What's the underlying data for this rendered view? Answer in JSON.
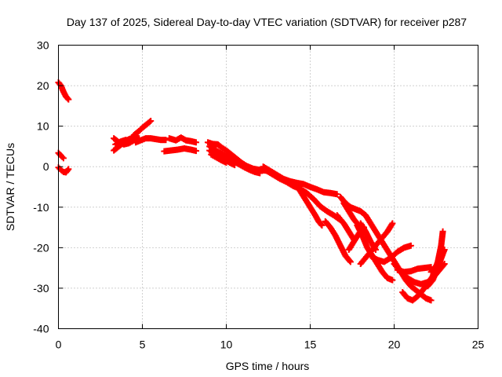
{
  "chart_data": {
    "type": "scatter",
    "title": "Day 137 of 2025, Sidereal Day-to-day VTEC variation (SDTVAR) for receiver p287",
    "xlabel": "GPS time / hours",
    "ylabel": "SDTVAR / TECUs",
    "xlim": [
      0,
      25
    ],
    "ylim": [
      -40,
      30
    ],
    "xticks": [
      0,
      5,
      10,
      15,
      20,
      25
    ],
    "yticks": [
      30,
      20,
      10,
      0,
      -10,
      -20,
      -30,
      -40
    ],
    "grid": true,
    "marker": "+",
    "color": "#ff0000",
    "series": [
      {
        "name": "SDTVAR",
        "segments": [
          [
            [
              0.0,
              20.8
            ],
            [
              0.15,
              20.0
            ],
            [
              0.3,
              18.5
            ],
            [
              0.45,
              17.3
            ],
            [
              0.6,
              16.6
            ]
          ],
          [
            [
              0.0,
              3.4
            ],
            [
              0.15,
              2.7
            ],
            [
              0.3,
              2.1
            ]
          ],
          [
            [
              0.0,
              -0.2
            ],
            [
              0.15,
              -0.8
            ],
            [
              0.3,
              -1.3
            ],
            [
              0.45,
              -1.4
            ],
            [
              0.6,
              -0.6
            ]
          ],
          [
            [
              3.3,
              4.0
            ],
            [
              3.6,
              5.0
            ],
            [
              3.9,
              6.0
            ],
            [
              4.2,
              6.8
            ],
            [
              4.5,
              7.2
            ],
            [
              4.8,
              7.0
            ]
          ],
          [
            [
              3.3,
              7.0
            ],
            [
              3.6,
              6.0
            ],
            [
              3.9,
              5.5
            ],
            [
              4.2,
              5.8
            ],
            [
              4.5,
              6.5
            ],
            [
              4.8,
              6.8
            ]
          ],
          [
            [
              3.4,
              5.5
            ],
            [
              3.7,
              6.2
            ],
            [
              4.0,
              6.6
            ],
            [
              4.3,
              6.4
            ]
          ],
          [
            [
              4.5,
              7.8
            ],
            [
              4.8,
              8.8
            ],
            [
              5.0,
              9.6
            ],
            [
              5.3,
              10.6
            ],
            [
              5.5,
              11.3
            ]
          ],
          [
            [
              4.6,
              6.0
            ],
            [
              4.9,
              6.5
            ],
            [
              5.2,
              7.0
            ],
            [
              5.5,
              7.0
            ],
            [
              5.8,
              6.8
            ],
            [
              6.1,
              6.6
            ],
            [
              6.4,
              6.6
            ]
          ],
          [
            [
              6.6,
              7.0
            ],
            [
              7.0,
              6.5
            ],
            [
              7.3,
              7.2
            ],
            [
              7.6,
              6.5
            ],
            [
              7.9,
              6.3
            ],
            [
              8.2,
              6.0
            ]
          ],
          [
            [
              6.3,
              3.8
            ],
            [
              6.7,
              4.0
            ],
            [
              7.1,
              4.2
            ],
            [
              7.5,
              4.5
            ],
            [
              7.9,
              4.2
            ],
            [
              8.2,
              3.9
            ]
          ],
          [
            [
              8.9,
              6.0
            ],
            [
              9.2,
              5.6
            ],
            [
              9.5,
              5.5
            ],
            [
              9.7,
              4.8
            ],
            [
              10.0,
              4.0
            ],
            [
              10.3,
              3.0
            ],
            [
              10.6,
              2.0
            ],
            [
              10.9,
              1.0
            ],
            [
              11.2,
              0.2
            ],
            [
              11.6,
              -0.5
            ],
            [
              12.0,
              -0.8
            ],
            [
              12.4,
              -1.0
            ],
            [
              12.8,
              -1.5
            ]
          ],
          [
            [
              9.0,
              5.0
            ],
            [
              9.3,
              4.2
            ],
            [
              9.6,
              3.5
            ],
            [
              9.9,
              2.8
            ],
            [
              10.2,
              2.0
            ],
            [
              10.5,
              1.2
            ],
            [
              10.8,
              0.5
            ],
            [
              11.1,
              -0.2
            ],
            [
              11.4,
              -0.8
            ],
            [
              11.7,
              -1.3
            ],
            [
              12.0,
              -1.6
            ]
          ],
          [
            [
              9.0,
              4.0
            ],
            [
              9.3,
              3.2
            ],
            [
              9.6,
              2.5
            ],
            [
              9.9,
              1.8
            ],
            [
              10.2,
              1.0
            ],
            [
              10.5,
              0.4
            ]
          ],
          [
            [
              9.1,
              3.0
            ],
            [
              9.4,
              2.3
            ],
            [
              9.7,
              1.6
            ],
            [
              10.0,
              1.0
            ]
          ],
          [
            [
              12.2,
              0.0
            ],
            [
              12.6,
              -1.0
            ],
            [
              13.0,
              -2.0
            ],
            [
              13.4,
              -3.0
            ],
            [
              13.8,
              -3.6
            ],
            [
              14.2,
              -4.0
            ],
            [
              14.6,
              -4.3
            ],
            [
              15.0,
              -5.0
            ],
            [
              15.4,
              -5.6
            ],
            [
              15.8,
              -6.3
            ],
            [
              16.2,
              -6.5
            ],
            [
              16.6,
              -6.8
            ]
          ],
          [
            [
              12.4,
              -1.0
            ],
            [
              12.8,
              -2.0
            ],
            [
              13.2,
              -3.0
            ],
            [
              13.6,
              -3.8
            ],
            [
              14.0,
              -4.8
            ],
            [
              14.4,
              -5.5
            ],
            [
              14.8,
              -6.5
            ],
            [
              15.2,
              -8.0
            ],
            [
              15.6,
              -9.8
            ],
            [
              16.0,
              -11.0
            ],
            [
              16.4,
              -12.0
            ],
            [
              16.8,
              -13.2
            ]
          ],
          [
            [
              14.4,
              -6.0
            ],
            [
              14.7,
              -8.0
            ],
            [
              15.0,
              -10.0
            ],
            [
              15.3,
              -12.0
            ],
            [
              15.5,
              -13.5
            ],
            [
              15.7,
              -14.5
            ]
          ],
          [
            [
              16.8,
              -7.5
            ],
            [
              17.1,
              -9.0
            ],
            [
              17.4,
              -10.0
            ],
            [
              17.7,
              -10.5
            ],
            [
              18.0,
              -11.0
            ],
            [
              18.3,
              -12.0
            ],
            [
              18.6,
              -14.0
            ],
            [
              18.9,
              -16.0
            ],
            [
              19.2,
              -18.0
            ],
            [
              19.5,
              -20.0
            ],
            [
              19.8,
              -22.0
            ],
            [
              20.1,
              -24.0
            ],
            [
              20.4,
              -26.0
            ],
            [
              20.7,
              -28.0
            ],
            [
              21.0,
              -29.5
            ],
            [
              21.3,
              -30.5
            ],
            [
              21.6,
              -31.5
            ],
            [
              21.9,
              -32.5
            ],
            [
              22.2,
              -33.0
            ]
          ],
          [
            [
              17.0,
              -9.0
            ],
            [
              17.3,
              -11.0
            ],
            [
              17.6,
              -13.0
            ],
            [
              17.9,
              -14.5
            ],
            [
              18.2,
              -15.0
            ]
          ],
          [
            [
              17.8,
              -14.5
            ],
            [
              18.1,
              -17.0
            ],
            [
              18.4,
              -20.0
            ],
            [
              18.7,
              -22.0
            ],
            [
              19.0,
              -24.0
            ],
            [
              19.3,
              -26.0
            ],
            [
              19.6,
              -27.5
            ],
            [
              19.9,
              -28.0
            ]
          ],
          [
            [
              15.9,
              -13.5
            ],
            [
              16.2,
              -15.0
            ],
            [
              16.5,
              -17.0
            ],
            [
              16.8,
              -19.5
            ],
            [
              17.1,
              -22.0
            ],
            [
              17.4,
              -23.5
            ]
          ],
          [
            [
              17.3,
              -20.5
            ],
            [
              17.6,
              -18.5
            ],
            [
              17.9,
              -16.5
            ],
            [
              18.2,
              -15.0
            ]
          ],
          [
            [
              16.6,
              -12.0
            ],
            [
              17.0,
              -14.0
            ],
            [
              17.3,
              -16.0
            ],
            [
              17.6,
              -18.0
            ]
          ],
          [
            [
              18.0,
              -14.0
            ],
            [
              18.3,
              -16.0
            ],
            [
              18.6,
              -18.5
            ],
            [
              18.9,
              -20.5
            ]
          ],
          [
            [
              18.0,
              -24.0
            ],
            [
              18.4,
              -22.0
            ],
            [
              18.8,
              -20.0
            ],
            [
              19.2,
              -18.0
            ],
            [
              19.6,
              -16.0
            ],
            [
              19.9,
              -14.0
            ]
          ],
          [
            [
              18.6,
              -22.0
            ],
            [
              19.0,
              -23.0
            ],
            [
              19.4,
              -23.5
            ],
            [
              19.8,
              -22.5
            ],
            [
              20.2,
              -21.0
            ],
            [
              20.6,
              -20.0
            ],
            [
              21.0,
              -19.5
            ]
          ],
          [
            [
              20.0,
              -24.0
            ],
            [
              20.4,
              -26.0
            ],
            [
              20.8,
              -27.5
            ],
            [
              21.2,
              -28.5
            ],
            [
              21.6,
              -29.0
            ],
            [
              22.0,
              -28.5
            ],
            [
              22.4,
              -27.0
            ],
            [
              22.7,
              -25.5
            ],
            [
              23.0,
              -24.0
            ]
          ],
          [
            [
              20.2,
              -25.5
            ],
            [
              20.6,
              -26.0
            ],
            [
              21.0,
              -25.8
            ],
            [
              21.4,
              -25.2
            ],
            [
              21.8,
              -25.0
            ],
            [
              22.2,
              -24.8
            ]
          ],
          [
            [
              20.5,
              -31.0
            ],
            [
              20.8,
              -32.5
            ],
            [
              21.1,
              -33.0
            ],
            [
              21.4,
              -32.0
            ],
            [
              21.7,
              -30.5
            ],
            [
              22.0,
              -29.0
            ],
            [
              22.3,
              -27.0
            ],
            [
              22.6,
              -23.5
            ],
            [
              22.8,
              -19.5
            ],
            [
              22.9,
              -16.0
            ]
          ],
          [
            [
              22.0,
              -29.5
            ],
            [
              22.3,
              -28.0
            ],
            [
              22.6,
              -25.0
            ],
            [
              22.9,
              -21.5
            ]
          ],
          [
            [
              22.2,
              -26.0
            ],
            [
              22.5,
              -24.5
            ],
            [
              22.8,
              -22.5
            ],
            [
              23.0,
              -20.5
            ]
          ]
        ]
      }
    ]
  }
}
